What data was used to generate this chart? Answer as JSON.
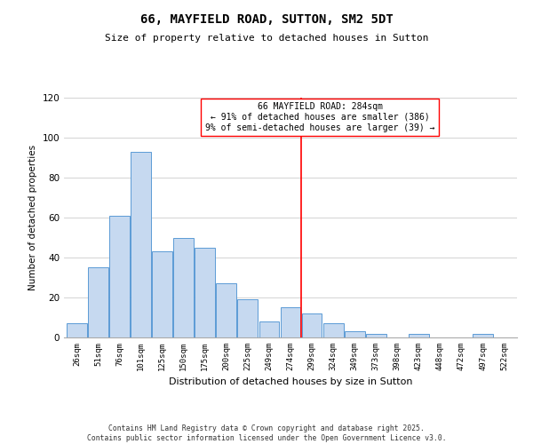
{
  "title": "66, MAYFIELD ROAD, SUTTON, SM2 5DT",
  "subtitle": "Size of property relative to detached houses in Sutton",
  "xlabel": "Distribution of detached houses by size in Sutton",
  "ylabel": "Number of detached properties",
  "bin_labels": [
    "26sqm",
    "51sqm",
    "76sqm",
    "101sqm",
    "125sqm",
    "150sqm",
    "175sqm",
    "200sqm",
    "225sqm",
    "249sqm",
    "274sqm",
    "299sqm",
    "324sqm",
    "349sqm",
    "373sqm",
    "398sqm",
    "423sqm",
    "448sqm",
    "472sqm",
    "497sqm",
    "522sqm"
  ],
  "bar_heights": [
    7,
    35,
    61,
    93,
    43,
    50,
    45,
    27,
    19,
    8,
    15,
    12,
    7,
    3,
    2,
    0,
    2,
    0,
    0,
    2,
    0
  ],
  "bar_color": "#c6d9f0",
  "bar_edge_color": "#5b9bd5",
  "vline_x": 10.5,
  "vline_color": "red",
  "ylim": [
    0,
    120
  ],
  "yticks": [
    0,
    20,
    40,
    60,
    80,
    100,
    120
  ],
  "annotation_title": "66 MAYFIELD ROAD: 284sqm",
  "annotation_line1": "← 91% of detached houses are smaller (386)",
  "annotation_line2": "9% of semi-detached houses are larger (39) →",
  "footer_line1": "Contains HM Land Registry data © Crown copyright and database right 2025.",
  "footer_line2": "Contains public sector information licensed under the Open Government Licence v3.0.",
  "background_color": "#ffffff",
  "grid_color": "#cccccc"
}
